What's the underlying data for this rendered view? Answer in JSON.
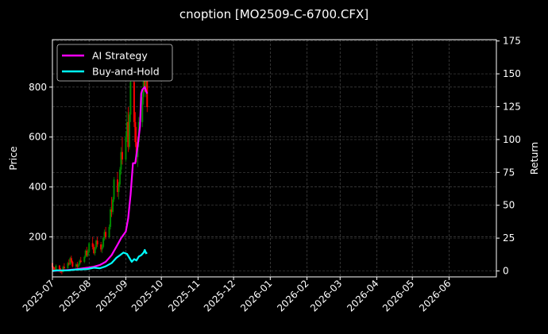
{
  "chart_data": {
    "type": "line",
    "title": "cnoption [MO2509-C-6700.CFX]",
    "ylabel_left": "Price",
    "ylabel_right": "Return",
    "x_ticks": [
      "2025-07",
      "2025-08",
      "2025-09",
      "2025-10",
      "2025-11",
      "2025-12",
      "2026-01",
      "2026-02",
      "2026-03",
      "2026-04",
      "2026-05",
      "2026-06"
    ],
    "x_range": [
      "2025-07-01",
      "2026-07-11"
    ],
    "y_left_range": [
      40,
      990
    ],
    "y_left_ticks": [
      200,
      400,
      600,
      800
    ],
    "y_right_range": [
      -4.5,
      176
    ],
    "y_right_ticks": [
      0,
      25,
      50,
      75,
      100,
      125,
      150,
      175
    ],
    "grid": true,
    "legend": {
      "position": "upper-left",
      "entries": [
        "AI Strategy",
        "Buy-and-Hold"
      ]
    },
    "colors": {
      "ai_strategy": "#ff00ff",
      "buy_and_hold": "#00ffff",
      "candle_up": "#008800",
      "candle_down": "#ff0000",
      "background": "#000000"
    },
    "candles": [
      [
        "2025-07-01",
        95,
        98,
        72,
        78
      ],
      [
        "2025-07-02",
        78,
        82,
        60,
        70
      ],
      [
        "2025-07-03",
        70,
        80,
        62,
        68
      ],
      [
        "2025-07-04",
        70,
        90,
        66,
        85
      ],
      [
        "2025-07-07",
        85,
        88,
        58,
        65
      ],
      [
        "2025-07-08",
        65,
        75,
        55,
        62
      ],
      [
        "2025-07-09",
        62,
        70,
        50,
        60
      ],
      [
        "2025-07-10",
        60,
        85,
        58,
        80
      ],
      [
        "2025-07-11",
        80,
        95,
        70,
        75
      ],
      [
        "2025-07-14",
        75,
        100,
        72,
        95
      ],
      [
        "2025-07-15",
        95,
        110,
        85,
        90
      ],
      [
        "2025-07-16",
        90,
        120,
        88,
        115
      ],
      [
        "2025-07-17",
        115,
        125,
        95,
        100
      ],
      [
        "2025-07-18",
        100,
        105,
        78,
        82
      ],
      [
        "2025-07-21",
        82,
        95,
        75,
        90
      ],
      [
        "2025-07-22",
        90,
        100,
        75,
        80
      ],
      [
        "2025-07-23",
        80,
        95,
        72,
        90
      ],
      [
        "2025-07-24",
        90,
        110,
        85,
        105
      ],
      [
        "2025-07-25",
        105,
        120,
        95,
        100
      ],
      [
        "2025-07-28",
        100,
        125,
        95,
        120
      ],
      [
        "2025-07-29",
        120,
        150,
        115,
        145
      ],
      [
        "2025-07-30",
        145,
        160,
        120,
        125
      ],
      [
        "2025-07-31",
        125,
        150,
        120,
        140
      ],
      [
        "2025-08-01",
        140,
        180,
        135,
        175
      ],
      [
        "2025-08-04",
        175,
        200,
        150,
        160
      ],
      [
        "2025-08-05",
        160,
        170,
        130,
        135
      ],
      [
        "2025-08-06",
        135,
        160,
        125,
        155
      ],
      [
        "2025-08-07",
        155,
        190,
        150,
        185
      ],
      [
        "2025-08-08",
        185,
        200,
        160,
        170
      ],
      [
        "2025-08-11",
        170,
        180,
        140,
        150
      ],
      [
        "2025-08-12",
        150,
        170,
        135,
        160
      ],
      [
        "2025-08-13",
        160,
        200,
        155,
        195
      ],
      [
        "2025-08-14",
        195,
        230,
        185,
        220
      ],
      [
        "2025-08-15",
        220,
        240,
        190,
        200
      ],
      [
        "2025-08-18",
        200,
        250,
        195,
        240
      ],
      [
        "2025-08-19",
        240,
        320,
        230,
        310
      ],
      [
        "2025-08-20",
        310,
        360,
        280,
        300
      ],
      [
        "2025-08-21",
        300,
        360,
        290,
        350
      ],
      [
        "2025-08-22",
        350,
        440,
        340,
        430
      ],
      [
        "2025-08-25",
        430,
        460,
        360,
        380
      ],
      [
        "2025-08-26",
        380,
        420,
        350,
        410
      ],
      [
        "2025-08-27",
        410,
        480,
        400,
        470
      ],
      [
        "2025-08-28",
        470,
        560,
        450,
        540
      ],
      [
        "2025-08-29",
        540,
        600,
        490,
        510
      ],
      [
        "2025-09-01",
        510,
        620,
        500,
        600
      ],
      [
        "2025-09-02",
        600,
        700,
        580,
        660
      ],
      [
        "2025-09-03",
        660,
        720,
        540,
        560
      ],
      [
        "2025-09-04",
        560,
        700,
        550,
        690
      ],
      [
        "2025-09-05",
        690,
        860,
        660,
        820
      ],
      [
        "2025-09-08",
        820,
        840,
        640,
        660
      ],
      [
        "2025-09-09",
        660,
        700,
        560,
        580
      ],
      [
        "2025-09-10",
        580,
        640,
        500,
        520
      ],
      [
        "2025-09-11",
        520,
        600,
        480,
        580
      ],
      [
        "2025-09-12",
        580,
        680,
        560,
        660
      ],
      [
        "2025-09-15",
        660,
        780,
        640,
        760
      ],
      [
        "2025-09-16",
        760,
        880,
        730,
        850
      ],
      [
        "2025-09-17",
        850,
        900,
        780,
        800
      ],
      [
        "2025-09-18",
        800,
        860,
        760,
        840
      ],
      [
        "2025-09-19",
        840,
        960,
        700,
        720
      ]
    ],
    "series": [
      {
        "name": "AI Strategy",
        "points": [
          [
            "2025-07-01",
            0
          ],
          [
            "2025-07-05",
            0.2
          ],
          [
            "2025-07-10",
            0.4
          ],
          [
            "2025-07-15",
            0.8
          ],
          [
            "2025-07-20",
            1.2
          ],
          [
            "2025-07-25",
            1.8
          ],
          [
            "2025-07-31",
            2.5
          ],
          [
            "2025-08-05",
            3.2
          ],
          [
            "2025-08-10",
            4.5
          ],
          [
            "2025-08-15",
            7
          ],
          [
            "2025-08-20",
            12
          ],
          [
            "2025-08-25",
            20
          ],
          [
            "2025-08-28",
            25
          ],
          [
            "2025-09-01",
            30
          ],
          [
            "2025-09-03",
            40
          ],
          [
            "2025-09-05",
            58
          ],
          [
            "2025-09-07",
            82
          ],
          [
            "2025-09-09",
            82
          ],
          [
            "2025-09-11",
            95
          ],
          [
            "2025-09-13",
            110
          ],
          [
            "2025-09-14",
            135
          ],
          [
            "2025-09-15",
            138
          ],
          [
            "2025-09-17",
            140
          ],
          [
            "2025-09-18",
            137
          ],
          [
            "2025-09-19",
            135
          ]
        ]
      },
      {
        "name": "Buy-and-Hold",
        "points": [
          [
            "2025-07-01",
            0
          ],
          [
            "2025-07-05",
            0.5
          ],
          [
            "2025-07-10",
            0.3
          ],
          [
            "2025-07-15",
            0.5
          ],
          [
            "2025-07-20",
            1.0
          ],
          [
            "2025-07-25",
            1.2
          ],
          [
            "2025-07-31",
            1.5
          ],
          [
            "2025-08-05",
            2.5
          ],
          [
            "2025-08-10",
            2.0
          ],
          [
            "2025-08-15",
            3.5
          ],
          [
            "2025-08-20",
            6
          ],
          [
            "2025-08-24",
            10
          ],
          [
            "2025-08-27",
            12
          ],
          [
            "2025-08-30",
            14
          ],
          [
            "2025-09-02",
            13
          ],
          [
            "2025-09-04",
            10
          ],
          [
            "2025-09-06",
            7
          ],
          [
            "2025-09-08",
            9
          ],
          [
            "2025-09-10",
            8
          ],
          [
            "2025-09-12",
            11
          ],
          [
            "2025-09-14",
            12
          ],
          [
            "2025-09-16",
            14
          ],
          [
            "2025-09-17",
            16
          ],
          [
            "2025-09-18",
            13.5
          ],
          [
            "2025-09-19",
            14
          ]
        ]
      }
    ]
  }
}
